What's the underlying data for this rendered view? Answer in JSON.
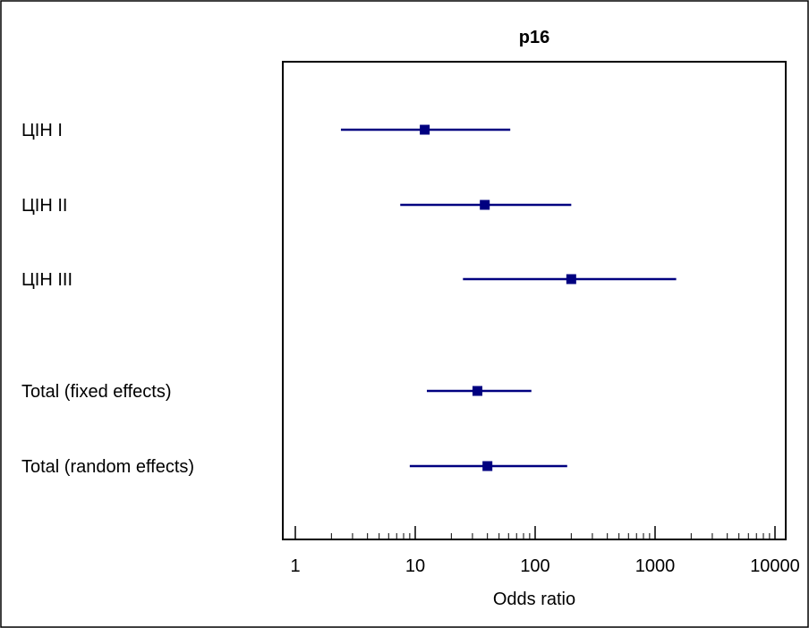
{
  "chart_data": {
    "type": "forest",
    "title": "p16",
    "xlabel": "Odds ratio",
    "xscale": "log",
    "xlim": [
      0.75,
      12000
    ],
    "x_ticks": [
      1,
      10,
      100,
      1000,
      10000
    ],
    "x_tick_labels": [
      "1",
      "10",
      "100",
      "1000",
      "10000"
    ],
    "marker_color": "#000080",
    "rows": [
      {
        "label": "ЦІН І",
        "estimate": 12,
        "ci_low": 2.4,
        "ci_high": 62
      },
      {
        "label": "ЦІН ІІ",
        "estimate": 38,
        "ci_low": 7.5,
        "ci_high": 200
      },
      {
        "label": "ЦІН ІІІ",
        "estimate": 200,
        "ci_low": 25,
        "ci_high": 1500
      },
      {
        "label": "Total (fixed effects)",
        "estimate": 33,
        "ci_low": 12.5,
        "ci_high": 93
      },
      {
        "label": "Total (random effects)",
        "estimate": 40,
        "ci_low": 9,
        "ci_high": 185
      }
    ]
  }
}
